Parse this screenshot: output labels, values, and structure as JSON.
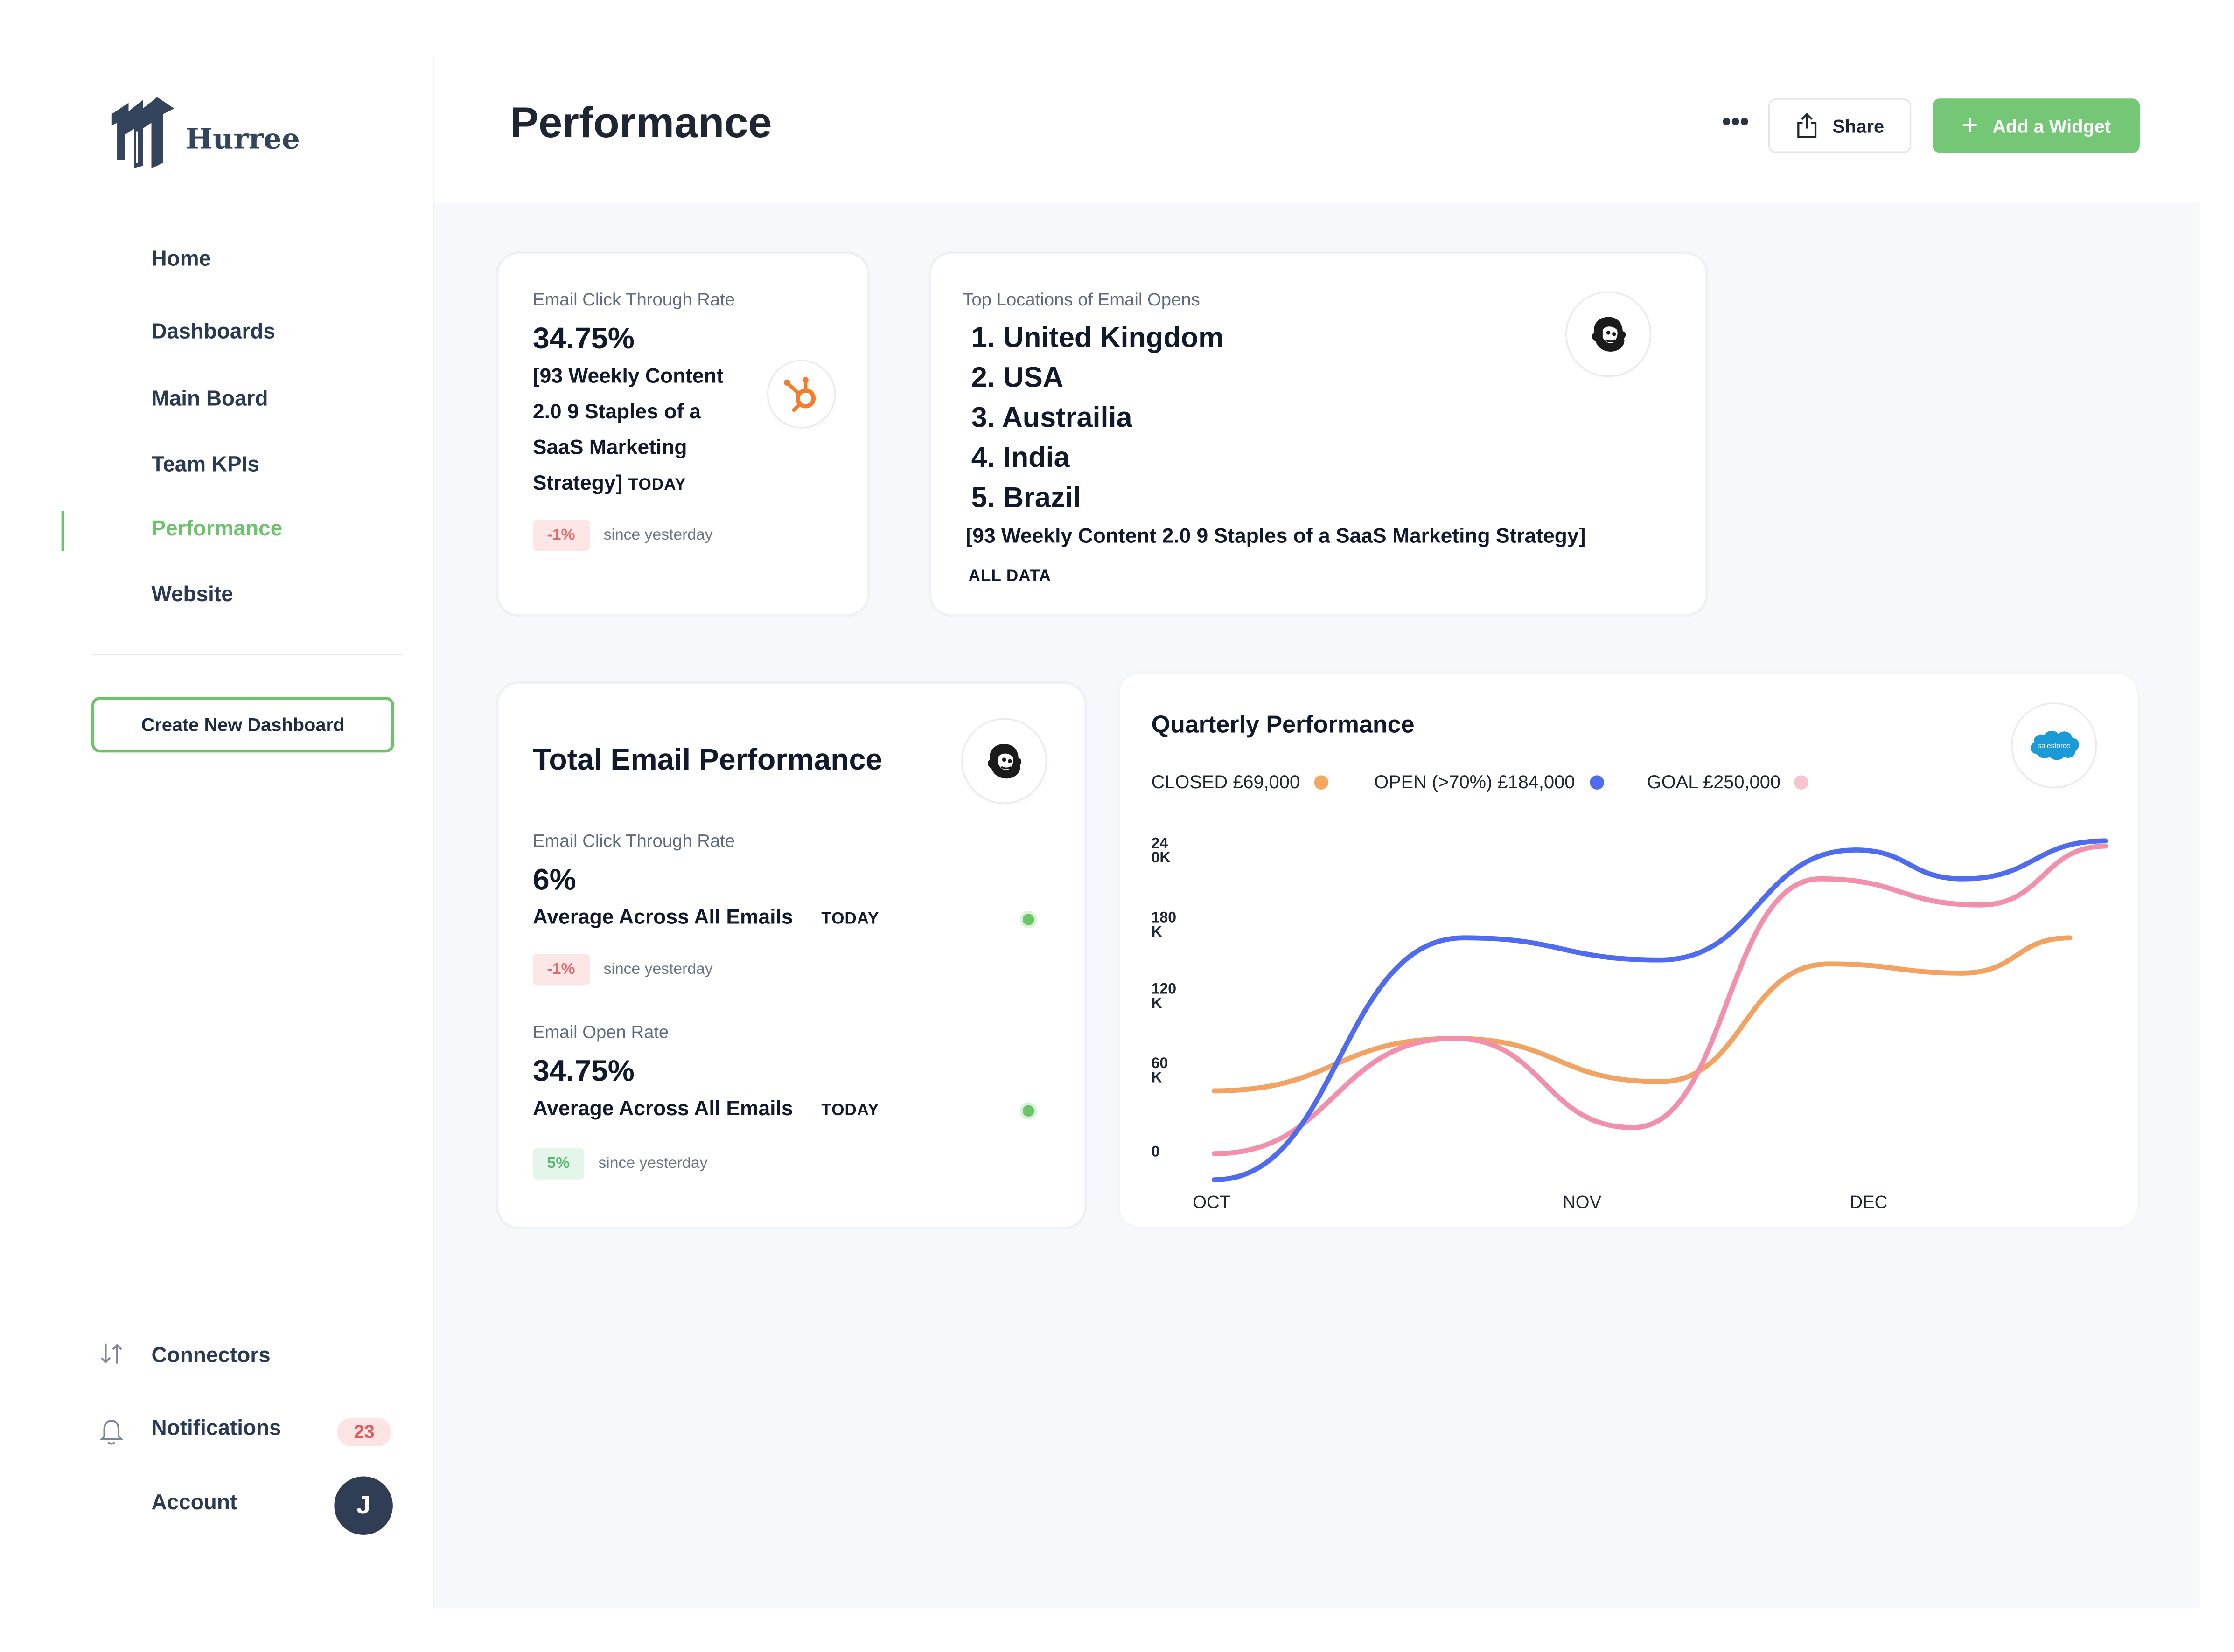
{
  "brand": {
    "name": "Hurree"
  },
  "sidebar": {
    "items": [
      {
        "label": "Home"
      },
      {
        "label": "Dashboards"
      },
      {
        "label": "Main Board"
      },
      {
        "label": "Team KPIs"
      },
      {
        "label": "Performance",
        "active": true
      },
      {
        "label": "Website"
      }
    ],
    "create_label": "Create New Dashboard",
    "connectors_label": "Connectors",
    "notifications_label": "Notifications",
    "notifications_count": "23",
    "account_label": "Account",
    "avatar_initial": "J"
  },
  "header": {
    "title": "Performance",
    "more_label": "•••",
    "share_label": "Share",
    "add_widget_label": "Add a Widget"
  },
  "ctr_card": {
    "label": "Email Click Through Rate",
    "value": "34.75%",
    "line1": "[93 Weekly Content",
    "line2": "2.0 9 Staples of a",
    "line3": "SaaS Marketing",
    "line4": "Strategy]",
    "period": "TODAY",
    "change": "-1%",
    "since": "since yesterday",
    "icon": "hubspot-icon"
  },
  "locations_card": {
    "label": "Top Locations of Email Opens",
    "items": [
      "1. United Kingdom",
      "2. USA",
      "3. Austrailia",
      "4. India",
      "5. Brazil"
    ],
    "campaign": "[93 Weekly Content 2.0 9 Staples of a SaaS Marketing Strategy]",
    "scope": "ALL DATA",
    "icon": "mailchimp-icon"
  },
  "total_card": {
    "title": "Total Email Performance",
    "icon": "mailchimp-icon",
    "metrics": [
      {
        "label": "Email Click Through Rate",
        "value": "6%",
        "desc": "Average Across All Emails",
        "period": "TODAY",
        "change": "-1%",
        "since": "since yesterday"
      },
      {
        "label": "Email Open Rate",
        "value": "34.75%",
        "desc": "Average Across All Emails",
        "period": "TODAY",
        "change": "5%",
        "since": "since yesterday"
      }
    ]
  },
  "quarterly_card": {
    "title": "Quarterly Performance",
    "icon": "salesforce-icon",
    "icon_text": "salesforce",
    "legend": [
      {
        "label": "CLOSED £69,000",
        "color": "#f4a95e"
      },
      {
        "label": "OPEN (>70%) £184,000",
        "color": "#4f6cf0"
      },
      {
        "label": "GOAL £250,000",
        "color": "#f7c3cf"
      }
    ]
  },
  "chart_data": {
    "type": "line",
    "title": "Quarterly Performance",
    "x_labels": [
      "OCT",
      "NOV",
      "DEC"
    ],
    "y_ticks": [
      {
        "line1": "24",
        "line2": "0K"
      },
      {
        "line1": "180",
        "line2": "K"
      },
      {
        "line1": "120",
        "line2": "K"
      },
      {
        "line1": "60",
        "line2": "K"
      },
      {
        "line1": "0",
        "line2": ""
      }
    ],
    "ylim": [
      0,
      240000
    ],
    "series": [
      {
        "name": "OPEN (>70%) £184,000",
        "color": "#4f6cf0",
        "points": [
          [
            0,
            -20000
          ],
          [
            0.28,
            165000
          ],
          [
            0.5,
            148000
          ],
          [
            0.72,
            232000
          ],
          [
            0.84,
            210000
          ],
          [
            1,
            239000
          ]
        ]
      },
      {
        "name": "GOAL £250,000",
        "color": "#f28fab",
        "points": [
          [
            0,
            0
          ],
          [
            0.27,
            88000
          ],
          [
            0.47,
            20000
          ],
          [
            0.68,
            210000
          ],
          [
            0.86,
            190000
          ],
          [
            1,
            235000
          ]
        ]
      },
      {
        "name": "CLOSED £69,000",
        "color": "#f2a261",
        "points": [
          [
            0,
            48000
          ],
          [
            0.27,
            88000
          ],
          [
            0.5,
            55000
          ],
          [
            0.69,
            145000
          ],
          [
            0.84,
            138000
          ],
          [
            0.96,
            165000
          ]
        ]
      }
    ],
    "grid": false,
    "legend_position": "top"
  }
}
